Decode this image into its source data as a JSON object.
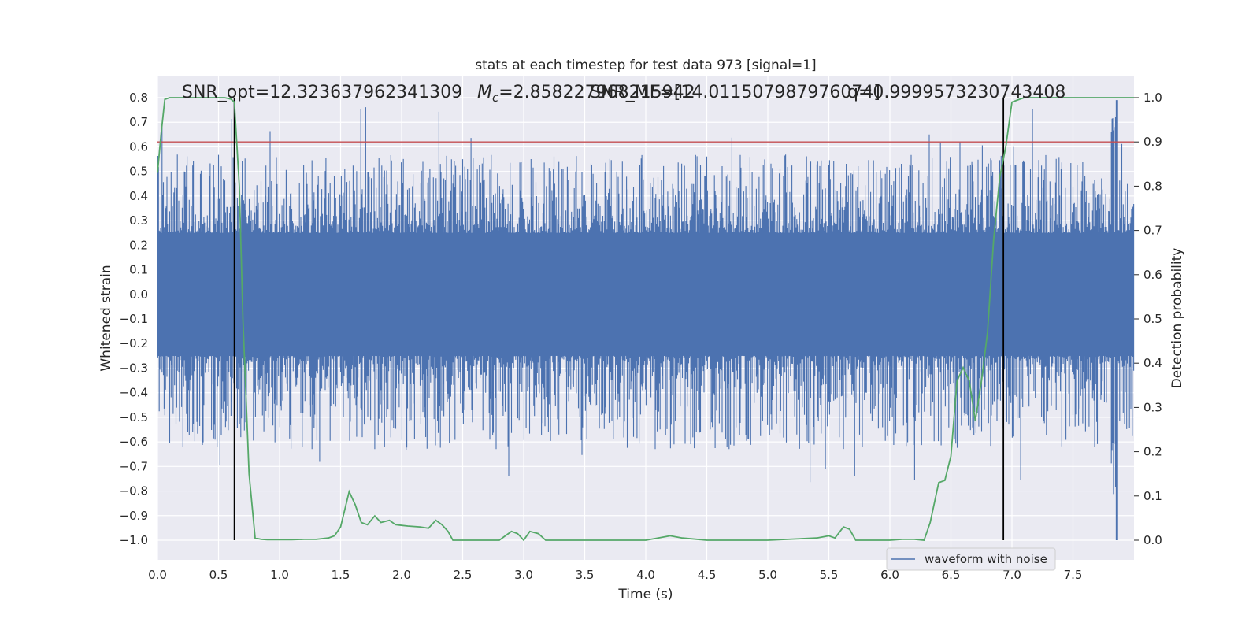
{
  "chart_data": {
    "type": "line",
    "title": "stats at each timestep for test data 973 [signal=1]",
    "xlabel": "Time (s)",
    "ylabel": "Whitened strain",
    "y2label": "Detection probability",
    "xlim": [
      0.0,
      8.0
    ],
    "ylim": [
      -1.0,
      0.8
    ],
    "y2lim": [
      0.0,
      1.0
    ],
    "x_ticks": [
      "0.0",
      "0.5",
      "1.0",
      "1.5",
      "2.0",
      "2.5",
      "3.0",
      "3.5",
      "4.0",
      "4.5",
      "5.0",
      "5.5",
      "6.0",
      "6.5",
      "7.0",
      "7.5"
    ],
    "y_ticks": [
      "0.8",
      "0.7",
      "0.6",
      "0.5",
      "0.4",
      "0.3",
      "0.2",
      "0.1",
      "0.0",
      "−0.1",
      "−0.2",
      "−0.3",
      "−0.4",
      "−0.5",
      "−0.6",
      "−0.7",
      "−0.8",
      "−0.9",
      "−1.0"
    ],
    "y2_ticks": [
      "1.0",
      "0.9",
      "0.8",
      "0.7",
      "0.6",
      "0.5",
      "0.4",
      "0.3",
      "0.2",
      "0.1",
      "0.0"
    ],
    "grid": true,
    "legend_position": "lower-right",
    "annotations": {
      "snr_opt": "SNR_opt=12.323637962341309",
      "mc_prefix": "M",
      "mc_sub": "c",
      "mc_value": "=2.858227968215942",
      "snr_mf": "SNR_MF=[14.011507987976074]",
      "q_value": "q=0.9999573230743408"
    },
    "threshold": {
      "y2": 0.9,
      "color": "#c44e52"
    },
    "vertical_lines": [
      0.63,
      6.93
    ],
    "series": [
      {
        "name": "waveform with noise",
        "axis": "left",
        "color": "#4c72b0",
        "description_envelope": {
          "core_amplitude": 0.25,
          "max_amplitude": 0.79,
          "min_amplitude": -1.0
        }
      },
      {
        "name": "",
        "axis": "right",
        "color": "#55a868",
        "x": [
          0.0,
          0.03,
          0.06,
          0.1,
          0.2,
          0.3,
          0.45,
          0.55,
          0.6,
          0.63,
          0.67,
          0.7,
          0.75,
          0.8,
          0.85,
          0.9,
          1.0,
          1.1,
          1.2,
          1.3,
          1.4,
          1.45,
          1.5,
          1.57,
          1.62,
          1.67,
          1.72,
          1.78,
          1.83,
          1.9,
          1.95,
          2.05,
          2.15,
          2.22,
          2.28,
          2.33,
          2.38,
          2.42,
          2.5,
          2.6,
          2.8,
          2.9,
          2.95,
          3.0,
          3.05,
          3.12,
          3.18,
          3.25,
          3.35,
          3.5,
          4.0,
          4.1,
          4.2,
          4.3,
          4.5,
          4.6,
          5.0,
          5.4,
          5.5,
          5.55,
          5.62,
          5.67,
          5.72,
          5.8,
          5.9,
          6.0,
          6.1,
          6.2,
          6.28,
          6.33,
          6.4,
          6.45,
          6.5,
          6.55,
          6.6,
          6.65,
          6.7,
          6.75,
          6.8,
          6.85,
          6.9,
          6.95,
          7.0,
          7.1,
          7.5,
          8.0
        ],
        "y": [
          0.83,
          0.92,
          0.996,
          1.0,
          1.0,
          1.0,
          1.0,
          1.0,
          0.997,
          0.99,
          0.8,
          0.5,
          0.15,
          0.005,
          0.002,
          0.001,
          0.001,
          0.001,
          0.002,
          0.002,
          0.005,
          0.01,
          0.03,
          0.11,
          0.08,
          0.04,
          0.035,
          0.055,
          0.04,
          0.045,
          0.035,
          0.032,
          0.03,
          0.027,
          0.045,
          0.035,
          0.02,
          0.0,
          0.0,
          0.0,
          0.0,
          0.02,
          0.015,
          0.0,
          0.02,
          0.015,
          0.0,
          0.0,
          0.0,
          0.0,
          0.0,
          0.005,
          0.01,
          0.005,
          0.0,
          0.0,
          0.0,
          0.005,
          0.01,
          0.005,
          0.03,
          0.025,
          0.0,
          0.0,
          0.0,
          0.0,
          0.002,
          0.002,
          0.0,
          0.04,
          0.13,
          0.135,
          0.19,
          0.36,
          0.39,
          0.36,
          0.27,
          0.36,
          0.47,
          0.68,
          0.82,
          0.89,
          0.99,
          1.0,
          1.0,
          1.0
        ]
      }
    ]
  }
}
